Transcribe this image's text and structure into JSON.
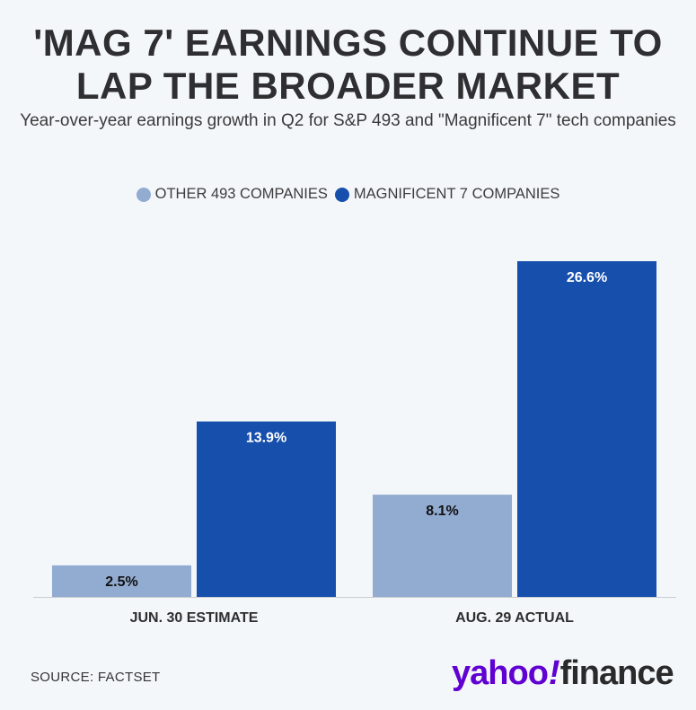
{
  "header": {
    "title_line1": "'MAG 7' EARNINGS CONTINUE TO",
    "title_line2": "LAP THE BROADER MARKET",
    "subtitle": "Year-over-year earnings growth in Q2 for S&P 493 and \"Magnificent 7\" tech companies"
  },
  "footer": {
    "source": "SOURCE: FACTSET",
    "logo_part1": "yahoo",
    "logo_bang": "!",
    "logo_part2": "finance"
  },
  "chart_data": {
    "type": "bar",
    "categories": [
      "JUN. 30 ESTIMATE",
      "AUG. 29 ACTUAL"
    ],
    "series": [
      {
        "name": "OTHER 493 COMPANIES",
        "values": [
          2.5,
          8.1
        ],
        "labels": [
          "2.5%",
          "8.1%"
        ],
        "color": "#92abd1",
        "label_color": "#111111"
      },
      {
        "name": "MAGNIFICENT 7 COMPANIES",
        "values": [
          13.9,
          26.6
        ],
        "labels": [
          "13.9%",
          "26.6%"
        ],
        "color": "#164fac",
        "label_color": "#ffffff"
      }
    ],
    "ylim": [
      0,
      26.6
    ],
    "legend_position": "top-center",
    "grid": false
  }
}
